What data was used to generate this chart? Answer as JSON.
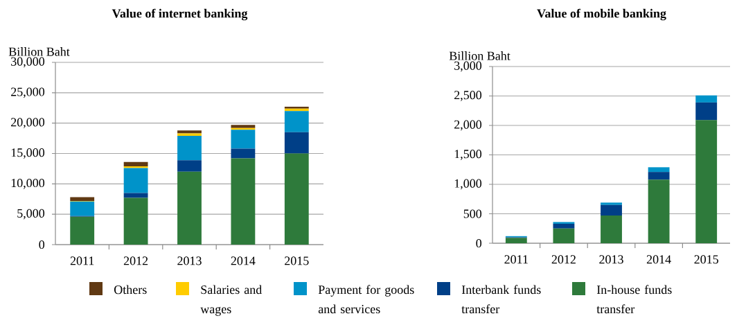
{
  "chart_data": [
    {
      "type": "bar",
      "title": "Value of internet banking",
      "ylabel": "Billion Baht",
      "categories": [
        "2011",
        "2012",
        "2013",
        "2014",
        "2015"
      ],
      "ylim": [
        0,
        30000
      ],
      "yticks": [
        0,
        {
          "value": 5000,
          "label": "5,000"
        },
        {
          "value": 10000,
          "label": "10,000"
        },
        {
          "value": 15000,
          "label": "15,000"
        },
        {
          "value": 20000,
          "label": "20,000"
        },
        {
          "value": 25000,
          "label": "25,000"
        },
        {
          "value": 30000,
          "label": "30,000"
        }
      ],
      "grid": "y",
      "stacked": true,
      "legend": "bottom",
      "series": [
        {
          "name": "In-house funds transfer",
          "color": "#2e7a3b",
          "values": [
            4600,
            7700,
            12000,
            14200,
            15000
          ]
        },
        {
          "name": "Interbank funds transfer",
          "color": "#003f87",
          "values": [
            100,
            800,
            1900,
            1600,
            3500
          ]
        },
        {
          "name": "Payment for goods and services",
          "color": "#0093c9",
          "values": [
            2400,
            4100,
            4000,
            3100,
            3500
          ]
        },
        {
          "name": "Salaries and wages",
          "color": "#ffcc00",
          "values": [
            100,
            300,
            400,
            300,
            400
          ]
        },
        {
          "name": "Others",
          "color": "#603913",
          "values": [
            600,
            700,
            500,
            500,
            300
          ]
        }
      ]
    },
    {
      "type": "bar",
      "title": "Value of mobile banking",
      "ylabel": "Billion Baht",
      "categories": [
        "2011",
        "2012",
        "2013",
        "2014",
        "2015"
      ],
      "ylim": [
        0,
        3000
      ],
      "yticks": [
        0,
        500,
        {
          "value": 1000,
          "label": "1,000"
        },
        {
          "value": 1500,
          "label": "1,500"
        },
        {
          "value": 2000,
          "label": "2,000"
        },
        {
          "value": 2500,
          "label": "2,500"
        },
        {
          "value": 3000,
          "label": "3,000"
        }
      ],
      "grid": "y",
      "stacked": true,
      "series": [
        {
          "color": "#2e7a3b",
          "values": [
            90,
            250,
            470,
            1080,
            2090
          ]
        },
        {
          "color": "#003f87",
          "values": [
            10,
            80,
            180,
            130,
            300
          ]
        },
        {
          "color": "#0093c9",
          "values": [
            20,
            30,
            40,
            80,
            120
          ]
        }
      ]
    }
  ]
}
